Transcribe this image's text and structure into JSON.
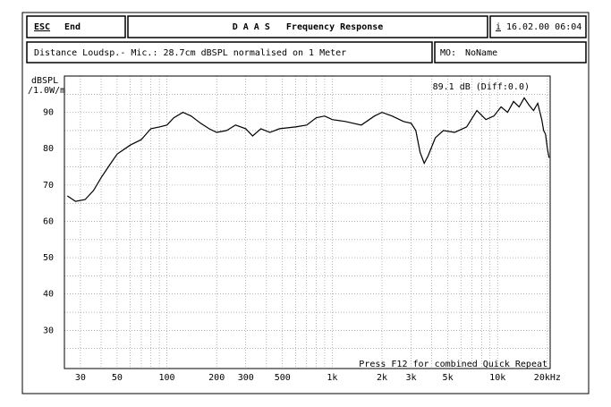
{
  "header": {
    "esc": "ESC",
    "end": "End",
    "title": "D A A S   Frequency Response",
    "info": "i",
    "datetime": "16.02.00 06:04",
    "note": "Distance Loudsp.- Mic.: 28.7cm dBSPL normalised on 1 Meter",
    "mo_label": "MO:",
    "mo_value": "NoName"
  },
  "chart_data": {
    "type": "line",
    "ylabel": [
      "dBSPL",
      "/1.0W/m"
    ],
    "annotation": "89.1 dB (Diff:0.0)",
    "footer": "Press F12 for combined Quick Repeat",
    "log_x": true,
    "grid": true,
    "color": "#000000",
    "xlim": [
      24,
      20800
    ],
    "ylim": [
      19.5,
      100
    ],
    "xticks": [
      30,
      50,
      100,
      200,
      300,
      500,
      {
        "value": 1000,
        "label": "1k"
      },
      {
        "value": 2000,
        "label": "2k"
      },
      {
        "value": 3000,
        "label": "3k"
      },
      {
        "value": 5000,
        "label": "5k"
      },
      {
        "value": 10000,
        "label": "10k"
      },
      {
        "value": 20000,
        "label": "20kHz"
      }
    ],
    "x_grid_minor": [
      40,
      60,
      70,
      80,
      90,
      400,
      600,
      700,
      800,
      900,
      4000,
      6000,
      7000,
      8000,
      9000
    ],
    "yticks": [
      30,
      40,
      50,
      60,
      70,
      80,
      90
    ],
    "y_grid_minor": [
      25,
      35,
      45,
      55,
      65,
      75,
      85,
      95
    ],
    "series": [
      {
        "x": [
          25,
          28,
          32,
          36,
          40,
          45,
          50,
          60,
          70,
          80,
          90,
          100,
          110,
          125,
          140,
          160,
          180,
          200,
          230,
          260,
          300,
          330,
          370,
          420,
          480,
          600,
          700,
          800,
          900,
          1000,
          1200,
          1500,
          1800,
          2000,
          2300,
          2700,
          3000,
          3200,
          3400,
          3600,
          3800,
          4200,
          4700,
          5500,
          6500,
          7500,
          8500,
          9500,
          10500,
          11500,
          12500,
          13500,
          14500,
          15500,
          16500,
          17500,
          18500,
          19000,
          19500,
          20000,
          20500
        ],
        "values": [
          67,
          65.5,
          66,
          68.5,
          72,
          75.5,
          78.5,
          81,
          82.5,
          85.5,
          86,
          86.5,
          88.5,
          90,
          89,
          87,
          85.5,
          84.5,
          85,
          86.5,
          85.5,
          83.5,
          85.5,
          84.5,
          85.5,
          86,
          86.5,
          88.5,
          89,
          88,
          87.5,
          86.5,
          89,
          90,
          89,
          87.5,
          87,
          85,
          79,
          76,
          78,
          83,
          85,
          84.5,
          86,
          90.5,
          88,
          89,
          91.5,
          90,
          93,
          91.5,
          94,
          92,
          90.5,
          92.5,
          88,
          85,
          84,
          80,
          77.5
        ]
      }
    ]
  }
}
